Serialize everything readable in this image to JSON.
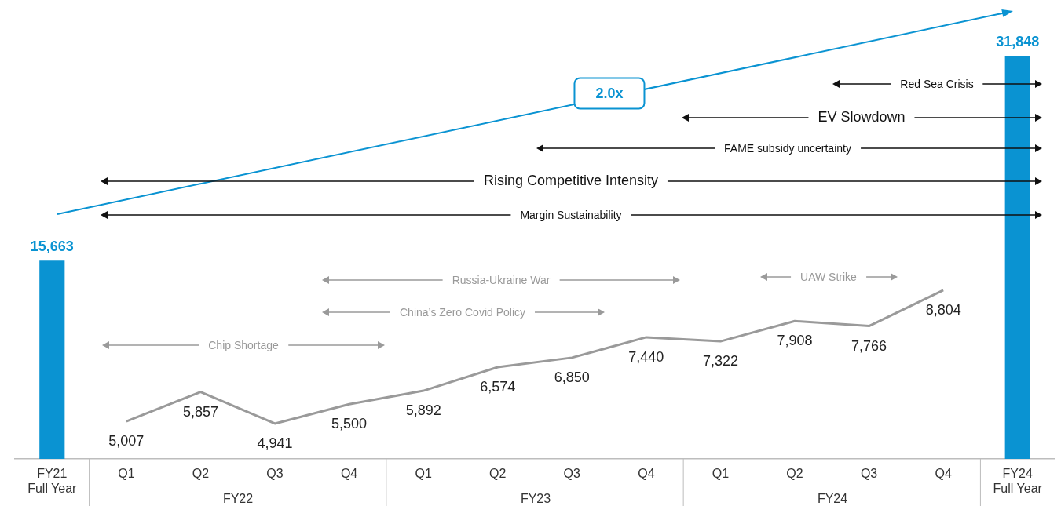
{
  "chart_data": {
    "type": "bar",
    "categories": [
      "FY21 Full Year",
      "Q1",
      "Q2",
      "Q3",
      "Q4",
      "Q1",
      "Q2",
      "Q3",
      "Q4",
      "Q1",
      "Q2",
      "Q3",
      "Q4",
      "FY24 Full Year"
    ],
    "series": [
      {
        "color": "#0a93d2",
        "values": [
          15663,
          null,
          null,
          null,
          null,
          null,
          null,
          null,
          null,
          null,
          null,
          null,
          null,
          31848
        ],
        "value_labels": [
          "15,663",
          null,
          null,
          null,
          null,
          null,
          null,
          null,
          null,
          null,
          null,
          null,
          null,
          "31,848"
        ]
      },
      {
        "type": "line",
        "axis": "y2",
        "color": "#9a9a9a",
        "values": [
          null,
          5007,
          5857,
          4941,
          5500,
          5892,
          6574,
          6850,
          7440,
          7322,
          7908,
          7766,
          8804,
          null
        ],
        "value_labels": [
          null,
          "5,007",
          "5,857",
          "4,941",
          "5,500",
          "5,892",
          "6,574",
          "6,850",
          "7,440",
          "7,322",
          "7,908",
          "7,766",
          "8,804",
          null
        ]
      }
    ],
    "tick_labels": "x",
    "grid": false,
    "legend": false,
    "marker": "none",
    "annotations": [
      "2.0x",
      "Red Sea Crisis",
      "EV Slowdown",
      "FAME subsidy uncertainty",
      "Rising Competitive Intensity",
      "Margin Sustainability",
      "Russia-Ukraine War",
      "China’s Zero Covid Policy",
      "UAW Strike",
      "Chip Shortage",
      "FY22",
      "FY23",
      "FY24"
    ]
  }
}
